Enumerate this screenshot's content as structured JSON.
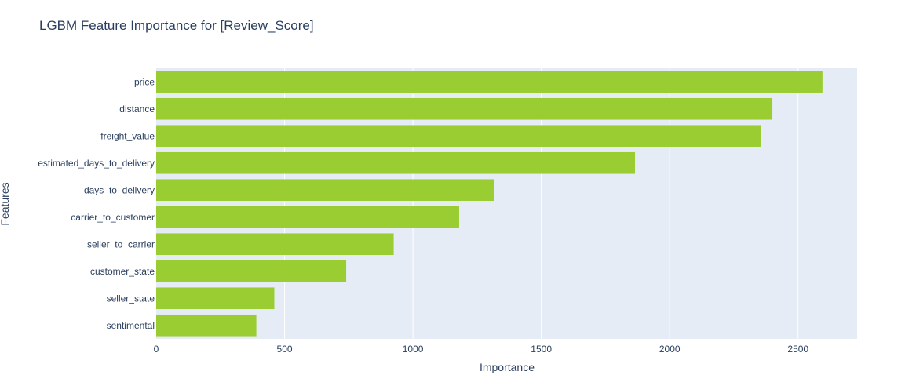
{
  "chart_data": {
    "type": "bar",
    "orientation": "horizontal",
    "title": "LGBM Feature Importance for [Review_Score]",
    "xlabel": "Importance",
    "ylabel": "Features",
    "xlim": [
      0,
      2730
    ],
    "xticks": [
      0,
      500,
      1000,
      1500,
      2000,
      2500
    ],
    "grid": true,
    "colors": {
      "bar": "#9acd32",
      "plot_bg": "#e5ecf6",
      "grid": "#ffffff",
      "text": "#2a3f5f"
    },
    "categories": [
      "price",
      "distance",
      "freight_value",
      "estimated_days_to_delivery",
      "days_to_delivery",
      "carrier_to_customer",
      "seller_to_carrier",
      "customer_state",
      "seller_state",
      "sentimental"
    ],
    "values": [
      2595,
      2400,
      2355,
      1865,
      1315,
      1180,
      925,
      740,
      460,
      390
    ]
  }
}
